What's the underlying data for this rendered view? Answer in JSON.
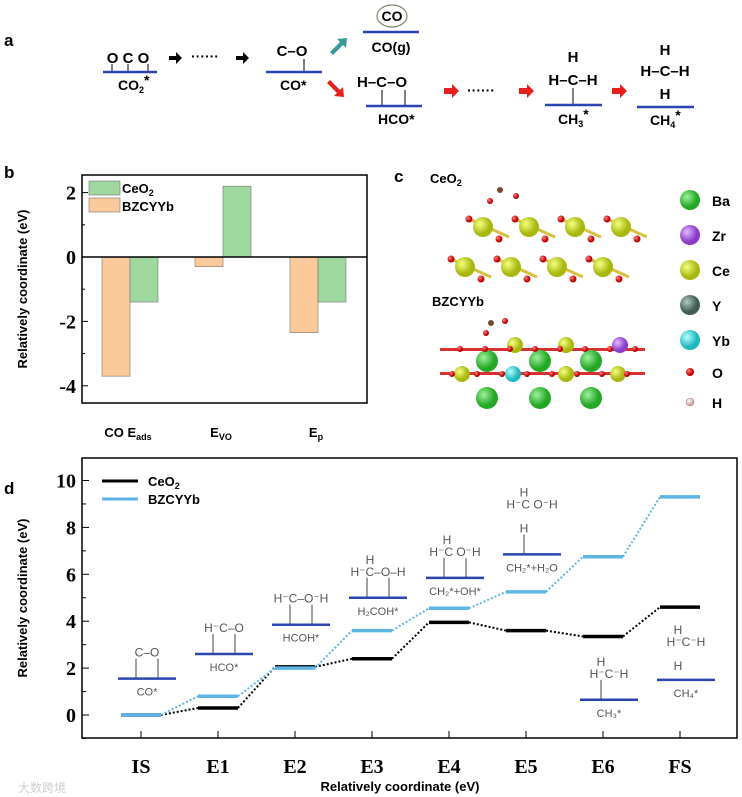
{
  "panel_labels": {
    "a": "a",
    "b": "b",
    "c": "c",
    "d": "d"
  },
  "colors": {
    "ceo2_bar": "#9fd89f",
    "bzcyyb_bar": "#fbc99a",
    "ceo2_line": "#000000",
    "bzcyyb_line": "#5fb4e6",
    "surface": "#2a44b0",
    "red_arrow": "#e8201c",
    "teal_arrow": "#3a9a96"
  },
  "panel_a": {
    "co2": {
      "top": "O C O",
      "label": "CO",
      "sub": "2",
      "sup": "*"
    },
    "co": {
      "top": "C–O",
      "label": "CO*"
    },
    "co_gas": {
      "circle": "CO",
      "label": "CO(g)"
    },
    "hco": {
      "top": "H–C–O",
      "label": "HCO*"
    },
    "ch3": {
      "top1": "H",
      "top2": "H–C–H",
      "label": "CH",
      "sub": "3",
      "sup": "*"
    },
    "ch4": {
      "top1": "H",
      "top2": "H–C–H",
      "top3": "H",
      "label": "CH",
      "sub": "4",
      "sup": "*"
    },
    "dots": "······"
  },
  "chart_data": [
    {
      "type": "bar",
      "panel": "b",
      "categories": [
        {
          "main": "CO E",
          "sub": "ads"
        },
        {
          "main": "E",
          "sub": "VO"
        },
        {
          "main": "E",
          "sub": "p"
        }
      ],
      "series": [
        {
          "name": "CeO",
          "name_sub": "2",
          "values": [
            -1.4,
            2.2,
            -1.4
          ]
        },
        {
          "name": "BZCYYb",
          "name_sub": "",
          "values": [
            -3.7,
            -0.3,
            -2.35
          ]
        }
      ],
      "ylabel": "Relatively coordinate (eV)",
      "ylim": [
        -4.5,
        2.5
      ],
      "yticks": [
        "-4",
        "-2",
        "0",
        "2"
      ],
      "legend": "top-left"
    },
    {
      "type": "line",
      "panel": "d",
      "categories": [
        "IS",
        "E1",
        "E2",
        "E3",
        "E4",
        "E5",
        "E6",
        "FS"
      ],
      "series": [
        {
          "name": "CeO",
          "name_sub": "2",
          "values": [
            0,
            0.3,
            2.05,
            2.4,
            3.95,
            3.6,
            3.35,
            4.6
          ]
        },
        {
          "name": "BZCYYb",
          "name_sub": "",
          "values": [
            0,
            0.8,
            2.0,
            3.6,
            4.55,
            5.25,
            6.75,
            9.3
          ]
        }
      ],
      "species": [
        {
          "label": "CO*",
          "level": 1.55,
          "lines": [
            "C–O"
          ],
          "anchors": 2
        },
        {
          "label": "HCO*",
          "level": 2.6,
          "lines": [
            "H⁻C–O"
          ],
          "anchors": 2
        },
        {
          "label": "HCOH*",
          "level": 3.85,
          "lines": [
            "H⁻C–O⁻H"
          ],
          "anchors": 2
        },
        {
          "label": "H₂COH*",
          "level": 5.0,
          "lines": [
            "H",
            "H⁻C–O–H"
          ],
          "anchors": 2
        },
        {
          "label": "CH₂*+OH*",
          "level": 5.85,
          "lines": [
            "H",
            "H⁻C  O⁻H"
          ],
          "anchors": 2
        },
        {
          "label": "CH₂*+H₂O",
          "level": 6.85,
          "lines": [
            "H",
            "H⁻C   O⁻H",
            "H"
          ],
          "anchors": 1
        },
        {
          "label": "CH₃*",
          "level": 0.65,
          "lines": [
            "H",
            "H⁻C⁻H"
          ],
          "anchors": 1
        },
        {
          "label": "CH₄*",
          "level": 1.5,
          "lines": [
            "H",
            "H⁻C⁻H",
            "H"
          ],
          "anchors": 0
        }
      ],
      "xlabel": "Relatively coordinate (eV)",
      "ylabel": "Relatively coordinate (eV)",
      "ylim": [
        -1,
        11
      ],
      "yticks": [
        "0",
        "2",
        "4",
        "6",
        "8",
        "10"
      ],
      "legend": "top-left"
    }
  ],
  "panel_c": {
    "ceo2_title": "CeO",
    "ceo2_sub": "2",
    "bzcyyb_title": "BZCYYb",
    "legend": [
      {
        "label": "Ba",
        "color": "#3cc83c"
      },
      {
        "label": "Zr",
        "color": "#a45ce0"
      },
      {
        "label": "Ce",
        "color": "#c8dc1e"
      },
      {
        "label": "Y",
        "color": "#5e7c74"
      },
      {
        "label": "Yb",
        "color": "#44dcdc"
      },
      {
        "label": "O",
        "color": "#e02020"
      },
      {
        "label": "H",
        "color": "#f0d8d8"
      }
    ]
  },
  "watermark": "大数跨境"
}
